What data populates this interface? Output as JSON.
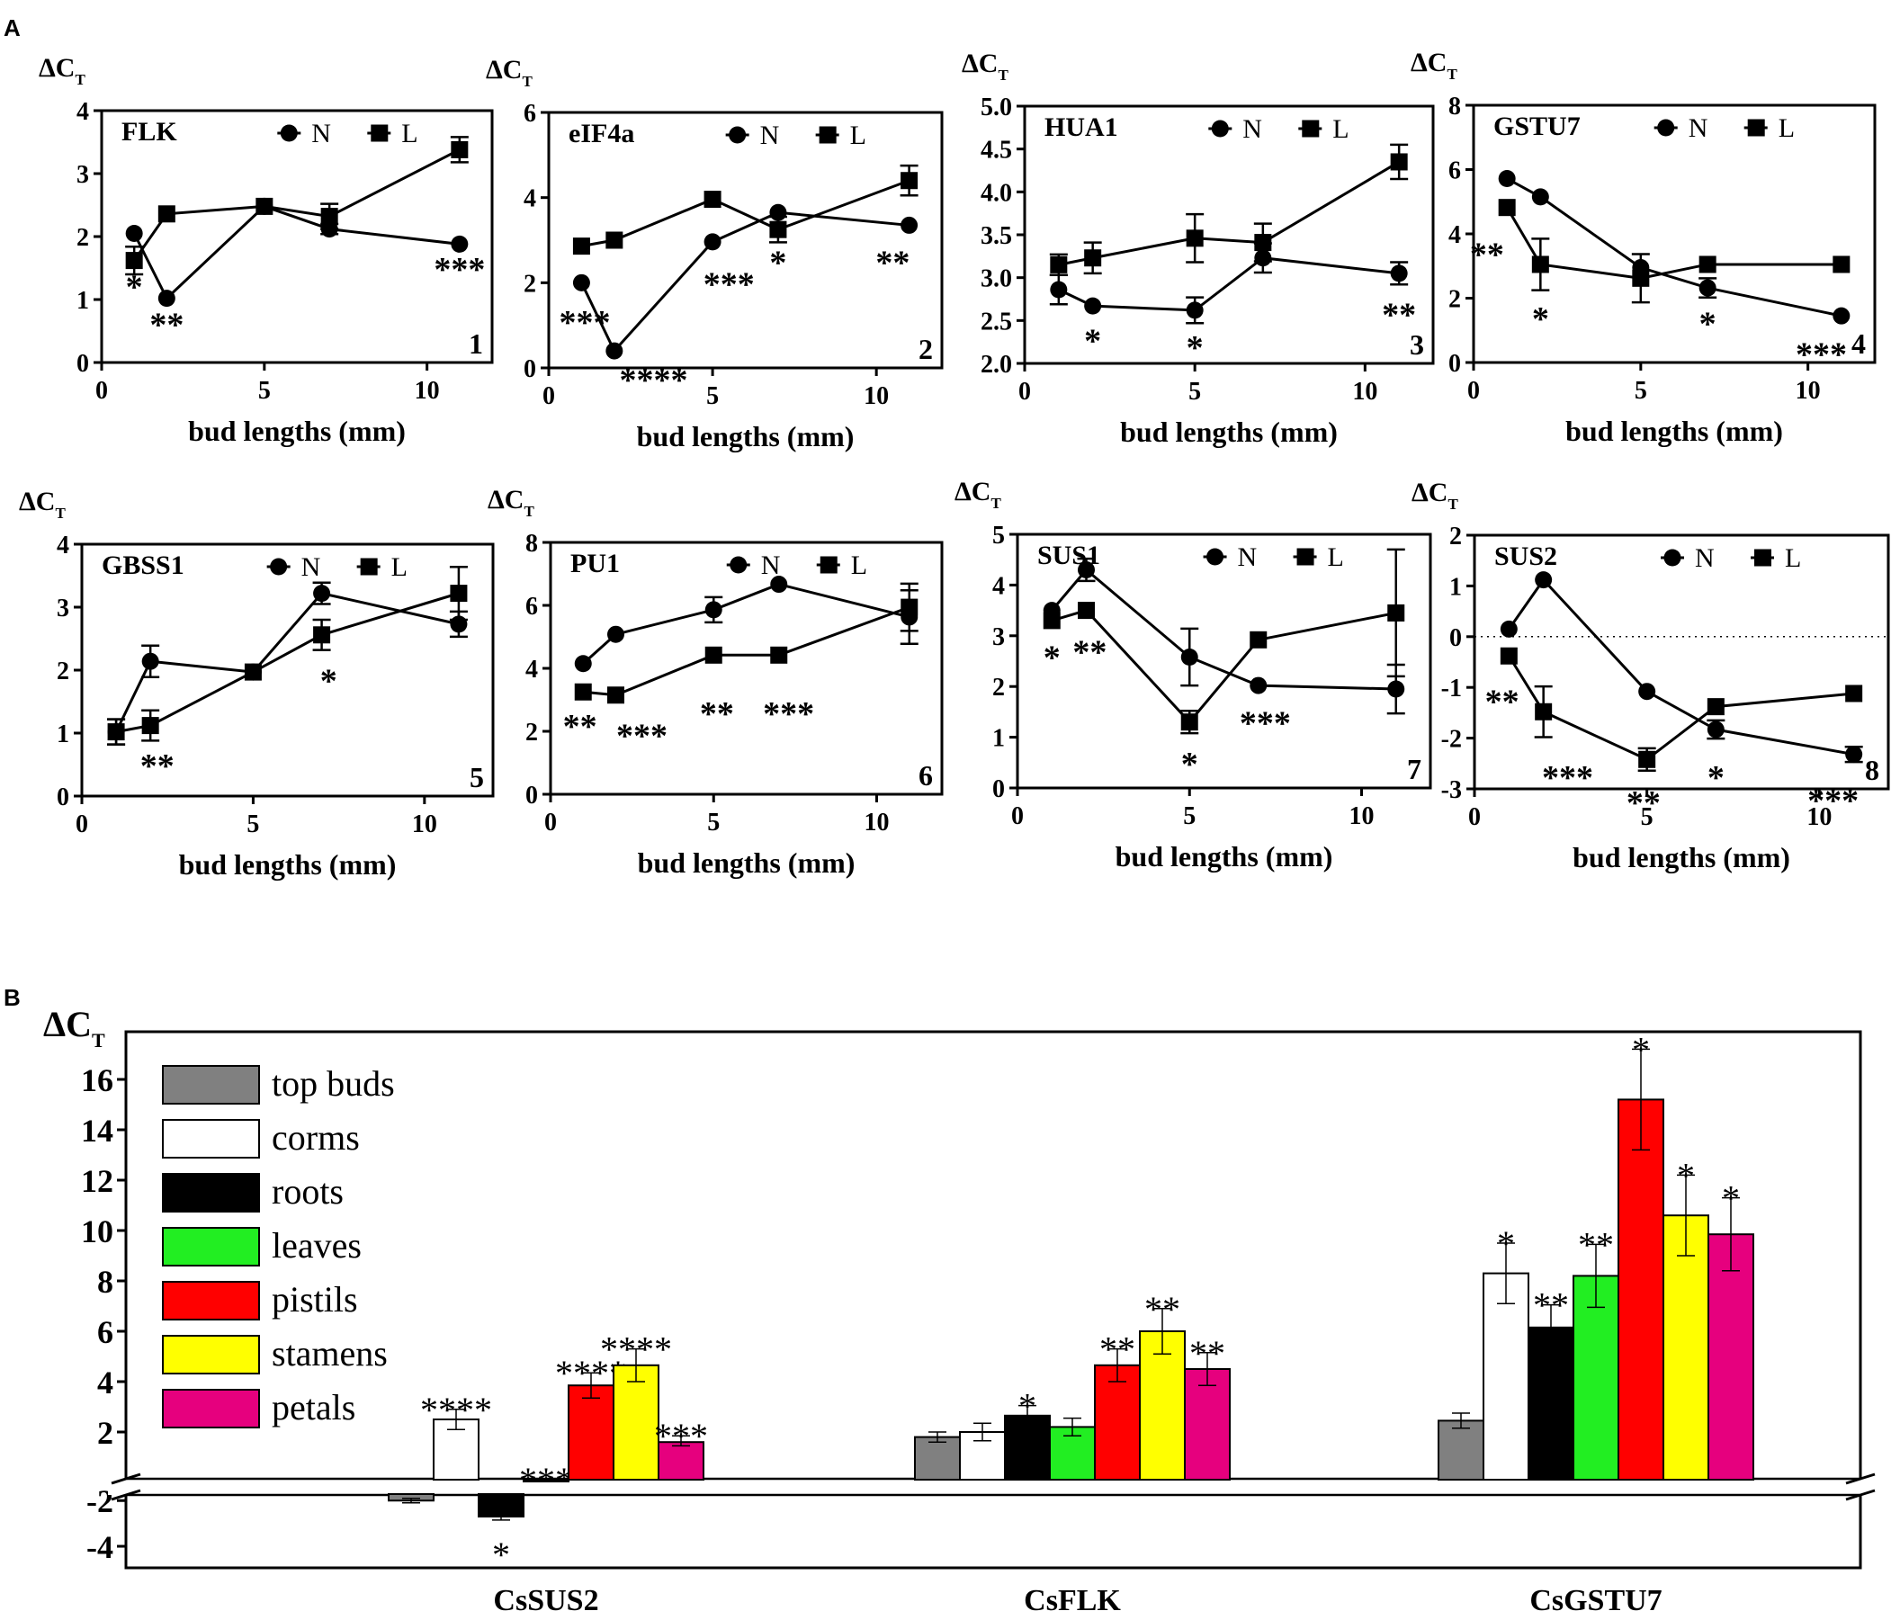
{
  "figure": {
    "panel_a_label": "A",
    "panel_b_label": "B",
    "y_label_main": "ΔC",
    "y_label_sub": "T",
    "xlabel": "bud lengths (mm)",
    "legend_n": "N",
    "legend_l": "L"
  },
  "chart_data": [
    {
      "type": "line",
      "panel": "A1",
      "gene": "FLK",
      "number": "1",
      "xlim": [
        0,
        12
      ],
      "xticks": [
        0,
        5,
        10
      ],
      "ylim": [
        0,
        4
      ],
      "yticks": [
        0,
        1,
        2,
        3,
        4
      ],
      "xlabel": "bud lengths (mm)",
      "x": [
        1,
        2,
        5,
        7,
        11
      ],
      "series": [
        {
          "name": "N",
          "marker": "circle",
          "values": [
            2.05,
            1.02,
            2.48,
            2.12,
            1.88
          ],
          "errors": [
            0,
            0,
            0,
            0.08,
            0
          ]
        },
        {
          "name": "L",
          "marker": "square",
          "values": [
            1.62,
            2.36,
            2.48,
            2.32,
            3.38
          ],
          "errors": [
            0.22,
            0,
            0,
            0.2,
            0.2
          ]
        }
      ],
      "annotations": [
        {
          "x": 1,
          "y": 1.22,
          "text": "*"
        },
        {
          "x": 2,
          "y": 0.62,
          "text": "**"
        },
        {
          "x": 11,
          "y": 1.5,
          "text": "***"
        }
      ]
    },
    {
      "type": "line",
      "panel": "A2",
      "gene": "eIF4a",
      "number": "2",
      "xlim": [
        0,
        12
      ],
      "xticks": [
        0,
        5,
        10
      ],
      "ylim": [
        0,
        6
      ],
      "yticks": [
        0,
        2,
        4,
        6
      ],
      "xlabel": "bud lengths (mm)",
      "x": [
        1,
        2,
        5,
        7,
        11
      ],
      "series": [
        {
          "name": "N",
          "marker": "circle",
          "values": [
            2.0,
            0.4,
            2.96,
            3.65,
            3.35
          ],
          "errors": [
            0,
            0,
            0,
            0,
            0
          ]
        },
        {
          "name": "L",
          "marker": "square",
          "values": [
            2.86,
            3.0,
            3.96,
            3.25,
            4.4
          ],
          "errors": [
            0,
            0,
            0,
            0.3,
            0.35
          ]
        }
      ],
      "annotations": [
        {
          "x": 1.1,
          "y": 1.1,
          "text": "***"
        },
        {
          "x": 3.2,
          "y": -0.25,
          "text": "****"
        },
        {
          "x": 5.5,
          "y": 2.0,
          "text": "***"
        },
        {
          "x": 7,
          "y": 2.5,
          "text": "*"
        },
        {
          "x": 10.5,
          "y": 2.5,
          "text": "**"
        }
      ]
    },
    {
      "type": "line",
      "panel": "A3",
      "gene": "HUA1",
      "number": "3",
      "xlim": [
        0,
        12
      ],
      "xticks": [
        0,
        5,
        10
      ],
      "ylim": [
        2.0,
        5.0
      ],
      "yticks": [
        2.0,
        2.5,
        3.0,
        3.5,
        4.0,
        4.5,
        5.0
      ],
      "xlabel": "bud lengths (mm)",
      "x": [
        1,
        2,
        5,
        7,
        11
      ],
      "series": [
        {
          "name": "N",
          "marker": "circle",
          "values": [
            2.86,
            2.67,
            2.62,
            3.23,
            3.05
          ],
          "errors": [
            0.17,
            0,
            0.15,
            0.17,
            0.13
          ]
        },
        {
          "name": "L",
          "marker": "square",
          "values": [
            3.15,
            3.23,
            3.46,
            3.41,
            4.35
          ],
          "errors": [
            0.12,
            0.18,
            0.28,
            0.22,
            0.2
          ]
        }
      ],
      "annotations": [
        {
          "x": 2,
          "y": 2.28,
          "text": "*"
        },
        {
          "x": 5,
          "y": 2.2,
          "text": "*"
        },
        {
          "x": 11,
          "y": 2.58,
          "text": "**"
        }
      ]
    },
    {
      "type": "line",
      "panel": "A4",
      "gene": "GSTU7",
      "number": "4",
      "xlim": [
        0,
        12
      ],
      "xticks": [
        0,
        5,
        10
      ],
      "ylim": [
        0,
        8
      ],
      "yticks": [
        0,
        2,
        4,
        6,
        8
      ],
      "xlabel": "bud lengths (mm)",
      "x": [
        1,
        2,
        5,
        7,
        11
      ],
      "series": [
        {
          "name": "N",
          "marker": "circle",
          "values": [
            5.72,
            5.15,
            2.95,
            2.32,
            1.45
          ],
          "errors": [
            0,
            0,
            0,
            0.3,
            0
          ]
        },
        {
          "name": "L",
          "marker": "square",
          "values": [
            4.82,
            3.05,
            2.62,
            3.05,
            3.05
          ],
          "errors": [
            0,
            0.8,
            0.75,
            0,
            0
          ]
        }
      ],
      "annotations": [
        {
          "x": 0.4,
          "y": 3.4,
          "text": "**"
        },
        {
          "x": 2,
          "y": 1.4,
          "text": "*"
        },
        {
          "x": 7,
          "y": 1.25,
          "text": "*"
        },
        {
          "x": 10.4,
          "y": 0.3,
          "text": "***"
        }
      ]
    },
    {
      "type": "line",
      "panel": "A5",
      "gene": "GBSS1",
      "number": "5",
      "xlim": [
        0,
        12
      ],
      "xticks": [
        0,
        5,
        10
      ],
      "ylim": [
        0,
        4
      ],
      "yticks": [
        0,
        1,
        2,
        3,
        4
      ],
      "xlabel": "bud lengths (mm)",
      "x": [
        1,
        2,
        5,
        7,
        11
      ],
      "series": [
        {
          "name": "N",
          "marker": "circle",
          "values": [
            1.02,
            2.14,
            1.97,
            3.22,
            2.73
          ],
          "errors": [
            0.2,
            0.25,
            0,
            0.17,
            0.2
          ]
        },
        {
          "name": "L",
          "marker": "square",
          "values": [
            1.02,
            1.12,
            1.97,
            2.56,
            3.22
          ],
          "errors": [
            0.2,
            0.24,
            0,
            0.24,
            0.42
          ]
        }
      ],
      "annotations": [
        {
          "x": 2.2,
          "y": 0.5,
          "text": "**"
        },
        {
          "x": 7.2,
          "y": 1.85,
          "text": "*"
        }
      ]
    },
    {
      "type": "line",
      "panel": "A6",
      "gene": "PU1",
      "number": "6",
      "xlim": [
        0,
        12
      ],
      "xticks": [
        0,
        5,
        10
      ],
      "ylim": [
        0,
        8
      ],
      "yticks": [
        0,
        2,
        4,
        6,
        8
      ],
      "xlabel": "bud lengths (mm)",
      "x": [
        1,
        2,
        5,
        7,
        11
      ],
      "series": [
        {
          "name": "N",
          "marker": "circle",
          "values": [
            4.15,
            5.08,
            5.86,
            6.67,
            5.63
          ],
          "errors": [
            0,
            0,
            0.4,
            0,
            0.85
          ]
        },
        {
          "name": "L",
          "marker": "square",
          "values": [
            3.25,
            3.15,
            4.42,
            4.42,
            5.94
          ],
          "errors": [
            0,
            0,
            0,
            0,
            0.75
          ]
        }
      ],
      "annotations": [
        {
          "x": 0.9,
          "y": 2.2,
          "text": "**"
        },
        {
          "x": 2.8,
          "y": 1.9,
          "text": "***"
        },
        {
          "x": 5.1,
          "y": 2.6,
          "text": "**"
        },
        {
          "x": 7.3,
          "y": 2.6,
          "text": "***"
        }
      ]
    },
    {
      "type": "line",
      "panel": "A7",
      "gene": "SUS1",
      "number": "7",
      "xlim": [
        0,
        12
      ],
      "xticks": [
        0,
        5,
        10
      ],
      "ylim": [
        0,
        5
      ],
      "yticks": [
        0,
        1,
        2,
        3,
        4,
        5
      ],
      "xlabel": "bud lengths (mm)",
      "x": [
        1,
        2,
        5,
        7,
        11
      ],
      "series": [
        {
          "name": "N",
          "marker": "circle",
          "values": [
            3.5,
            4.3,
            2.58,
            2.02,
            1.95
          ],
          "errors": [
            0,
            0.22,
            0.56,
            0,
            0.48
          ]
        },
        {
          "name": "L",
          "marker": "square",
          "values": [
            3.3,
            3.5,
            1.3,
            2.92,
            3.45
          ],
          "errors": [
            0,
            0,
            0.22,
            0,
            1.25
          ]
        }
      ],
      "annotations": [
        {
          "x": 1,
          "y": 2.6,
          "text": "*"
        },
        {
          "x": 2.1,
          "y": 2.7,
          "text": "**"
        },
        {
          "x": 5,
          "y": 0.5,
          "text": "*"
        },
        {
          "x": 7.2,
          "y": 1.3,
          "text": "***"
        }
      ]
    },
    {
      "type": "line",
      "panel": "A8",
      "gene": "SUS2",
      "number": "8",
      "xlim": [
        0,
        12
      ],
      "xticks": [
        0,
        5,
        10
      ],
      "ylim": [
        -3,
        2
      ],
      "yticks": [
        -3,
        -2,
        -1,
        0,
        1,
        2
      ],
      "xlabel": "bud lengths (mm)",
      "zero_line": true,
      "x": [
        1,
        2,
        5,
        7,
        11
      ],
      "series": [
        {
          "name": "N",
          "marker": "circle",
          "values": [
            0.15,
            1.12,
            -1.08,
            -1.83,
            -2.32
          ],
          "errors": [
            0,
            0,
            0,
            0.18,
            0.15
          ]
        },
        {
          "name": "L",
          "marker": "square",
          "values": [
            -0.38,
            -1.48,
            -2.42,
            -1.38,
            -1.12
          ],
          "errors": [
            0,
            0.5,
            0.22,
            0,
            0
          ]
        }
      ],
      "annotations": [
        {
          "x": 0.8,
          "y": -1.25,
          "text": "**"
        },
        {
          "x": 2.7,
          "y": -2.75,
          "text": "***"
        },
        {
          "x": 4.9,
          "y": -3.25,
          "text": "**"
        },
        {
          "x": 7,
          "y": -2.75,
          "text": "*"
        },
        {
          "x": 10.4,
          "y": -3.2,
          "text": "***"
        }
      ]
    },
    {
      "type": "bar",
      "panel": "B",
      "categories": [
        "CsSUS2",
        "CsFLK",
        "CsGSTU7"
      ],
      "yticks_upper": [
        2,
        4,
        6,
        8,
        10,
        12,
        14,
        16
      ],
      "yticks_lower": [
        -2,
        -4
      ],
      "axis_break": true,
      "series": [
        {
          "name": "top buds",
          "color": "#808080",
          "values": [
            -2.0,
            1.8,
            2.45
          ],
          "errors": [
            0.1,
            0.2,
            0.3
          ],
          "sig": [
            "",
            "",
            ""
          ]
        },
        {
          "name": "corms",
          "color": "#ffffff",
          "values": [
            2.5,
            2.0,
            8.3
          ],
          "errors": [
            0.4,
            0.35,
            1.2
          ],
          "sig": [
            "****",
            "",
            "*"
          ]
        },
        {
          "name": "roots",
          "color": "#000000",
          "values": [
            -2.7,
            2.65,
            6.15
          ],
          "errors": [
            0.15,
            0.4,
            0.9
          ],
          "sig": [
            "*",
            "*",
            "**"
          ]
        },
        {
          "name": "leaves",
          "color": "#22ee22",
          "values": [
            0.1,
            2.2,
            8.2
          ],
          "errors": [
            0,
            0.35,
            1.25
          ],
          "sig": [
            "***",
            "",
            "**"
          ]
        },
        {
          "name": "pistils",
          "color": "#ff0000",
          "values": [
            3.85,
            4.65,
            15.2
          ],
          "errors": [
            0.5,
            0.65,
            2.0
          ],
          "sig": [
            "****",
            "**",
            "*"
          ]
        },
        {
          "name": "stamens",
          "color": "#ffff00",
          "values": [
            4.65,
            6.0,
            10.6
          ],
          "errors": [
            0.65,
            0.9,
            1.6
          ],
          "sig": [
            "****",
            "**",
            "*"
          ]
        },
        {
          "name": "petals",
          "color": "#e6007e",
          "values": [
            1.6,
            4.5,
            9.85
          ],
          "errors": [
            0.25,
            0.65,
            1.45
          ],
          "sig": [
            "***",
            "**",
            "*"
          ]
        }
      ]
    }
  ]
}
